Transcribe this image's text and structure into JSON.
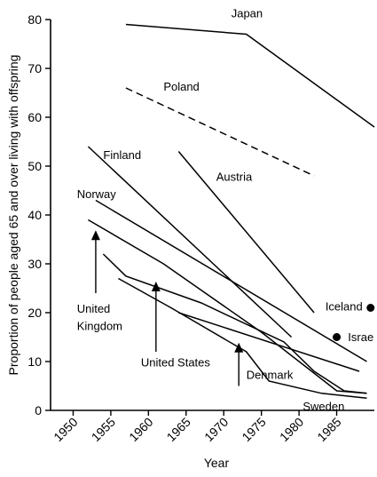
{
  "chart_data": {
    "type": "line",
    "xlabel": "Year",
    "ylabel": "Proportion of people aged 65 and over living with offspring",
    "xlim": [
      1947,
      1990
    ],
    "ylim": [
      0,
      80
    ],
    "xticks": [
      "1950",
      "1955",
      "1960",
      "1965",
      "1970",
      "1975",
      "1980",
      "1985"
    ],
    "yticks": [
      "0",
      "10",
      "20",
      "30",
      "40",
      "50",
      "60",
      "70",
      "80"
    ],
    "grid": false,
    "legend": "none",
    "series": [
      {
        "name": "Japan",
        "style": "solid",
        "points": [
          [
            1957,
            79
          ],
          [
            1973,
            77
          ],
          [
            1990,
            58
          ]
        ]
      },
      {
        "name": "Poland",
        "style": "dashed",
        "points": [
          [
            1957,
            66
          ],
          [
            1982,
            48
          ]
        ]
      },
      {
        "name": "Finland",
        "style": "solid",
        "points": [
          [
            1952,
            54
          ],
          [
            1979,
            15
          ]
        ]
      },
      {
        "name": "Austria",
        "style": "solid",
        "points": [
          [
            1964,
            53
          ],
          [
            1982,
            20
          ]
        ]
      },
      {
        "name": "Norway",
        "style": "solid",
        "points": [
          [
            1953,
            43
          ],
          [
            1989,
            10
          ]
        ]
      },
      {
        "name": "United Kingdom",
        "style": "solid",
        "points": [
          [
            1952,
            39
          ],
          [
            1962,
            30
          ],
          [
            1975,
            16
          ],
          [
            1985,
            4
          ],
          [
            1989,
            3.5
          ]
        ]
      },
      {
        "name": "United States",
        "style": "solid",
        "points": [
          [
            1954,
            32
          ],
          [
            1957,
            27.5
          ],
          [
            1967,
            22
          ],
          [
            1978,
            14
          ],
          [
            1982,
            8
          ],
          [
            1986,
            4
          ],
          [
            1989,
            3.5
          ]
        ]
      },
      {
        "name": "Denmark",
        "style": "solid",
        "points": [
          [
            1964,
            20
          ],
          [
            1988,
            8
          ]
        ]
      },
      {
        "name": "Sweden",
        "style": "solid",
        "points": [
          [
            1956,
            27
          ],
          [
            1963,
            21
          ],
          [
            1973,
            12
          ],
          [
            1976,
            6
          ],
          [
            1983,
            3.5
          ],
          [
            1989,
            2.5
          ]
        ]
      },
      {
        "name": "Iceland",
        "style": "point",
        "points": [
          [
            1989.5,
            21
          ]
        ]
      },
      {
        "name": "Israel",
        "style": "point",
        "points": [
          [
            1985,
            15
          ]
        ]
      }
    ],
    "labels": [
      {
        "text": "Japan",
        "at": [
          1971,
          80.5
        ]
      },
      {
        "text": "Poland",
        "at": [
          1962,
          65.5
        ]
      },
      {
        "text": "Finland",
        "at": [
          1954,
          51.5
        ]
      },
      {
        "text": "Austria",
        "at": [
          1969,
          47
        ]
      },
      {
        "text": "Norway",
        "at": [
          1950.5,
          43.5
        ]
      },
      {
        "text": "United",
        "at": [
          1950.5,
          20
        ]
      },
      {
        "text": "Kingdom",
        "at": [
          1950.5,
          16.5
        ]
      },
      {
        "text": "United States",
        "at": [
          1959,
          9
        ]
      },
      {
        "text": "Denmark",
        "at": [
          1973,
          6.5
        ]
      },
      {
        "text": "Sweden",
        "at": [
          1980.5,
          0
        ]
      },
      {
        "text": "Iceland",
        "at": [
          1983.5,
          20.5
        ]
      },
      {
        "text": "Israe",
        "at": [
          1986.5,
          14.2
        ]
      }
    ],
    "arrows": [
      {
        "from": [
          1953,
          24
        ],
        "to": [
          1953,
          36.5
        ]
      },
      {
        "from": [
          1961,
          12
        ],
        "to": [
          1961,
          26
        ]
      },
      {
        "from": [
          1972,
          5
        ],
        "to": [
          1972,
          13.5
        ]
      }
    ]
  }
}
